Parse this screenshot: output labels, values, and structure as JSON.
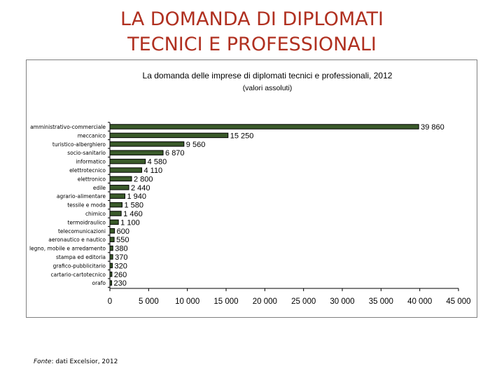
{
  "slide": {
    "title_line1": "LA DOMANDA DI DIPLOMATI",
    "title_line2": "TECNICI E PROFESSIONALI"
  },
  "source": {
    "label": "Fonte",
    "text": ": dati Excelsior, 2012"
  },
  "colors": {
    "title": "#b03020",
    "bar_fill": "#3a5a2a",
    "bar_stroke": "#000000"
  },
  "chart_data": {
    "type": "bar",
    "orientation": "horizontal",
    "title": "La domanda delle imprese di diplomati tecnici e professionali, 2012",
    "subtitle": "(valori assoluti)",
    "xlabel": "",
    "ylabel": "",
    "xlim": [
      0,
      45000
    ],
    "x_ticks": [
      0,
      5000,
      10000,
      15000,
      20000,
      25000,
      30000,
      35000,
      40000,
      45000
    ],
    "x_tick_labels": [
      "0",
      "5 000",
      "10 000",
      "15 000",
      "20 000",
      "25 000",
      "30 000",
      "35 000",
      "40 000",
      "45 000"
    ],
    "grid": false,
    "categories": [
      "amministrativo-commerciale",
      "meccanico",
      "turistico-alberghiero",
      "socio-sanitario",
      "informatico",
      "elettrotecnico",
      "elettronico",
      "edile",
      "agrario-alimentare",
      "tessile e moda",
      "chimico",
      "termoidraulico",
      "telecomunicazioni",
      "aeronautico e nautico",
      "legno, mobile e arredamento",
      "stampa ed editoria",
      "grafico-pubblicitario",
      "cartario-cartotecnico",
      "orafo"
    ],
    "values": [
      39860,
      15250,
      9560,
      6870,
      4580,
      4110,
      2800,
      2440,
      1940,
      1580,
      1460,
      1100,
      600,
      550,
      380,
      370,
      320,
      260,
      230
    ],
    "value_labels": [
      "39 860",
      "15 250",
      "9 560",
      "6 870",
      "4 580",
      "4 110",
      "2 800",
      "2 440",
      "1 940",
      "1 580",
      "1 460",
      "1 100",
      "600",
      "550",
      "380",
      "370",
      "320",
      "260",
      "230"
    ]
  }
}
